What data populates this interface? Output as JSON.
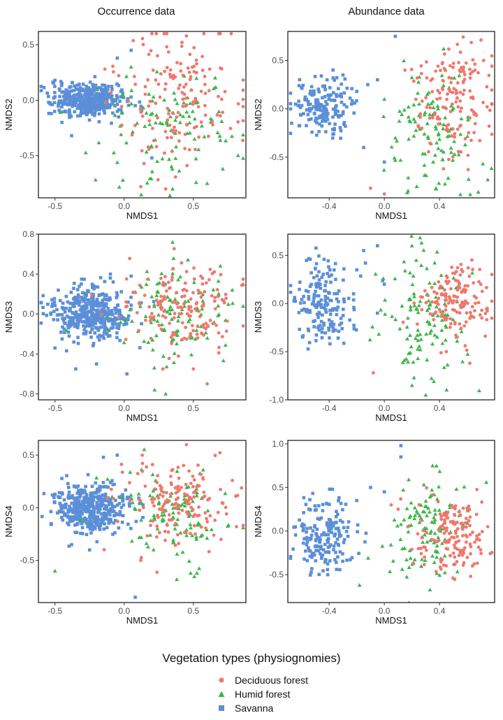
{
  "column_titles": [
    "Occurrence data",
    "Abundance data"
  ],
  "legend": {
    "title": "Vegetation types (physiognomies)",
    "entries": [
      {
        "label": "Deciduous forest",
        "shape": "circle",
        "color": "#F0776D"
      },
      {
        "label": "Humid forest",
        "shape": "triangle",
        "color": "#3FB54A"
      },
      {
        "label": "Savanna",
        "shape": "square",
        "color": "#5B8FD8"
      }
    ]
  },
  "chart_data": [
    {
      "type": "scatter",
      "panel": "occurrence-nmds2",
      "xlabel": "NMDS1",
      "ylabel": "NMDS2",
      "xlim": [
        -0.62,
        0.88
      ],
      "ylim": [
        -0.88,
        0.62
      ],
      "xticks": [
        -0.5,
        0.0,
        0.5
      ],
      "xtick_labels": [
        "-0.5",
        "0.0",
        "0.5"
      ],
      "yticks": [
        -0.5,
        0.0,
        0.5
      ],
      "ytick_labels": [
        "-0.5",
        "0.0",
        "0.5"
      ],
      "series": [
        {
          "name": "Savanna",
          "shape": "square",
          "color": "#5B8FD8",
          "n": 440,
          "center": [
            -0.25,
            0.0
          ],
          "spread": [
            0.13,
            0.07
          ],
          "outliers": [
            [
              -0.5,
              0.18
            ],
            [
              -0.45,
              -0.2
            ],
            [
              -0.38,
              -0.32
            ],
            [
              0.05,
              0.45
            ],
            [
              -0.05,
              0.38
            ],
            [
              0.2,
              -0.52
            ]
          ]
        },
        {
          "name": "Humid forest",
          "shape": "triangle",
          "color": "#3FB54A",
          "n": 110,
          "center": [
            0.3,
            -0.25
          ],
          "spread": [
            0.24,
            0.28
          ],
          "outliers": [
            [
              0.05,
              0.3
            ],
            [
              0.6,
              -0.75
            ],
            [
              0.35,
              -0.8
            ]
          ]
        },
        {
          "name": "Deciduous forest",
          "shape": "circle",
          "color": "#F0776D",
          "n": 160,
          "center": [
            0.38,
            0.05
          ],
          "spread": [
            0.2,
            0.32
          ],
          "outliers": [
            [
              0.3,
              -0.8
            ],
            [
              0.12,
              -0.78
            ],
            [
              0.45,
              0.58
            ]
          ]
        }
      ]
    },
    {
      "type": "scatter",
      "panel": "abundance-nmds2",
      "xlabel": "NMDS1",
      "ylabel": "NMDS2",
      "xlim": [
        -0.7,
        0.8
      ],
      "ylim": [
        -0.92,
        0.8
      ],
      "xticks": [
        -0.4,
        0.0,
        0.4
      ],
      "xtick_labels": [
        "-0.4",
        "0.0",
        "0.4"
      ],
      "yticks": [
        -0.5,
        0.0,
        0.5
      ],
      "ytick_labels": [
        "-0.5",
        "0.0",
        "0.5"
      ],
      "series": [
        {
          "name": "Savanna",
          "shape": "square",
          "color": "#5B8FD8",
          "n": 180,
          "center": [
            -0.44,
            0.02
          ],
          "spread": [
            0.1,
            0.14
          ],
          "outliers": [
            [
              0.08,
              0.75
            ],
            [
              -0.05,
              0.3
            ],
            [
              -0.12,
              0.25
            ],
            [
              -0.2,
              0.18
            ],
            [
              0.0,
              -0.55
            ],
            [
              -0.15,
              -0.4
            ],
            [
              -0.3,
              0.35
            ]
          ]
        },
        {
          "name": "Humid forest",
          "shape": "triangle",
          "color": "#3FB54A",
          "n": 110,
          "center": [
            0.35,
            -0.25
          ],
          "spread": [
            0.16,
            0.32
          ],
          "outliers": [
            [
              0.43,
              0.62
            ],
            [
              0.0,
              0.1
            ],
            [
              0.08,
              -0.3
            ]
          ]
        },
        {
          "name": "Deciduous forest",
          "shape": "circle",
          "color": "#F0776D",
          "n": 150,
          "center": [
            0.5,
            0.12
          ],
          "spread": [
            0.15,
            0.32
          ],
          "outliers": [
            [
              -0.1,
              -0.82
            ],
            [
              0.0,
              -0.88
            ],
            [
              0.15,
              0.4
            ],
            [
              0.72,
              0.5
            ]
          ]
        }
      ]
    },
    {
      "type": "scatter",
      "panel": "occurrence-nmds3",
      "xlabel": "NMDS1",
      "ylabel": "NMDS3",
      "xlim": [
        -0.62,
        0.88
      ],
      "ylim": [
        -0.86,
        0.8
      ],
      "xticks": [
        -0.5,
        0.0,
        0.5
      ],
      "xtick_labels": [
        "-0.5",
        "0.0",
        "0.5"
      ],
      "yticks": [
        -0.8,
        -0.4,
        0.0,
        0.4,
        0.8
      ],
      "ytick_labels": [
        "-0.8",
        "-0.4",
        "0.0",
        "0.4",
        "0.8"
      ],
      "series": [
        {
          "name": "Savanna",
          "shape": "square",
          "color": "#5B8FD8",
          "n": 420,
          "center": [
            -0.24,
            0.0
          ],
          "spread": [
            0.14,
            0.13
          ],
          "outliers": [
            [
              -0.35,
              -0.55
            ],
            [
              -0.2,
              -0.5
            ],
            [
              0.02,
              -0.6
            ],
            [
              -0.1,
              0.4
            ],
            [
              0.05,
              0.38
            ]
          ]
        },
        {
          "name": "Humid forest",
          "shape": "triangle",
          "color": "#3FB54A",
          "n": 120,
          "center": [
            0.35,
            0.0
          ],
          "spread": [
            0.22,
            0.22
          ],
          "outliers": [
            [
              0.35,
              0.72
            ],
            [
              0.22,
              -0.76
            ],
            [
              0.3,
              -0.8
            ]
          ]
        },
        {
          "name": "Deciduous forest",
          "shape": "circle",
          "color": "#F0776D",
          "n": 160,
          "center": [
            0.4,
            0.05
          ],
          "spread": [
            0.2,
            0.22
          ],
          "outliers": [
            [
              0.6,
              -0.7
            ],
            [
              0.5,
              -0.55
            ],
            [
              0.28,
              -0.55
            ]
          ]
        }
      ]
    },
    {
      "type": "scatter",
      "panel": "abundance-nmds3",
      "xlabel": "NMDS1",
      "ylabel": "NMDS3",
      "xlim": [
        -0.7,
        0.8
      ],
      "ylim": [
        -1.0,
        0.72
      ],
      "xticks": [
        -0.4,
        0.0,
        0.4
      ],
      "xtick_labels": [
        "-0.4",
        "0.0",
        "0.4"
      ],
      "yticks": [
        -1.0,
        -0.5,
        0.0,
        0.5
      ],
      "ytick_labels": [
        "-1.0",
        "-0.5",
        "0.0",
        "0.5"
      ],
      "series": [
        {
          "name": "Savanna",
          "shape": "square",
          "color": "#5B8FD8",
          "n": 180,
          "center": [
            -0.44,
            0.0
          ],
          "spread": [
            0.11,
            0.22
          ],
          "outliers": [
            [
              -0.05,
              0.6
            ],
            [
              -0.15,
              0.55
            ],
            [
              -0.2,
              0.35
            ],
            [
              0.0,
              0.2
            ],
            [
              -0.05,
              -0.1
            ]
          ]
        },
        {
          "name": "Humid forest",
          "shape": "triangle",
          "color": "#3FB54A",
          "n": 120,
          "center": [
            0.3,
            -0.15
          ],
          "spread": [
            0.16,
            0.35
          ],
          "outliers": [
            [
              0.2,
              0.6
            ],
            [
              0.27,
              0.63
            ],
            [
              0.2,
              -0.85
            ],
            [
              0.3,
              -0.95
            ]
          ]
        },
        {
          "name": "Deciduous forest",
          "shape": "circle",
          "color": "#F0776D",
          "n": 150,
          "center": [
            0.52,
            0.05
          ],
          "spread": [
            0.14,
            0.2
          ],
          "outliers": [
            [
              -0.08,
              -0.72
            ],
            [
              0.62,
              -0.62
            ],
            [
              0.45,
              -0.5
            ]
          ]
        }
      ]
    },
    {
      "type": "scatter",
      "panel": "occurrence-nmds4",
      "xlabel": "NMDS1",
      "ylabel": "NMDS4",
      "xlim": [
        -0.62,
        0.88
      ],
      "ylim": [
        -0.9,
        0.64
      ],
      "xticks": [
        -0.5,
        0.0,
        0.5
      ],
      "xtick_labels": [
        "-0.5",
        "0.0",
        "0.5"
      ],
      "yticks": [
        -0.5,
        0.0,
        0.5
      ],
      "ytick_labels": [
        "-0.5",
        "0.0",
        "0.5"
      ],
      "series": [
        {
          "name": "Savanna",
          "shape": "square",
          "color": "#5B8FD8",
          "n": 420,
          "center": [
            -0.24,
            0.0
          ],
          "spread": [
            0.14,
            0.11
          ],
          "outliers": [
            [
              -0.05,
              0.5
            ],
            [
              -0.15,
              0.48
            ],
            [
              0.08,
              -0.85
            ],
            [
              -0.38,
              -0.35
            ],
            [
              -0.25,
              -0.4
            ]
          ]
        },
        {
          "name": "Humid forest",
          "shape": "triangle",
          "color": "#3FB54A",
          "n": 120,
          "center": [
            0.35,
            -0.05
          ],
          "spread": [
            0.22,
            0.22
          ],
          "outliers": [
            [
              -0.5,
              -0.6
            ],
            [
              0.38,
              -0.68
            ],
            [
              0.48,
              -0.62
            ]
          ]
        },
        {
          "name": "Deciduous forest",
          "shape": "circle",
          "color": "#F0776D",
          "n": 160,
          "center": [
            0.38,
            0.08
          ],
          "spread": [
            0.2,
            0.2
          ],
          "outliers": [
            [
              0.45,
              0.6
            ],
            [
              0.7,
              -0.3
            ],
            [
              0.12,
              -0.5
            ]
          ]
        }
      ]
    },
    {
      "type": "scatter",
      "panel": "abundance-nmds4",
      "xlabel": "NMDS1",
      "ylabel": "NMDS4",
      "xlim": [
        -0.7,
        0.8
      ],
      "ylim": [
        -0.82,
        1.04
      ],
      "xticks": [
        -0.4,
        0.0,
        0.4
      ],
      "xtick_labels": [
        "-0.4",
        "0.0",
        "0.4"
      ],
      "yticks": [
        -0.5,
        0.0,
        0.5,
        1.0
      ],
      "ytick_labels": [
        "-0.5",
        "0.0",
        "0.5",
        "1.0"
      ],
      "series": [
        {
          "name": "Savanna",
          "shape": "square",
          "color": "#5B8FD8",
          "n": 180,
          "center": [
            -0.44,
            -0.05
          ],
          "spread": [
            0.11,
            0.22
          ],
          "outliers": [
            [
              0.12,
              0.98
            ],
            [
              0.12,
              0.85
            ],
            [
              -0.1,
              0.5
            ],
            [
              0.0,
              0.45
            ],
            [
              -0.2,
              0.35
            ]
          ]
        },
        {
          "name": "Humid forest",
          "shape": "triangle",
          "color": "#3FB54A",
          "n": 120,
          "center": [
            0.3,
            0.05
          ],
          "spread": [
            0.16,
            0.28
          ],
          "outliers": [
            [
              0.18,
              -0.82
            ],
            [
              0.35,
              0.75
            ],
            [
              -0.18,
              -0.62
            ]
          ]
        },
        {
          "name": "Deciduous forest",
          "shape": "circle",
          "color": "#F0776D",
          "n": 150,
          "center": [
            0.5,
            -0.08
          ],
          "spread": [
            0.13,
            0.25
          ],
          "outliers": [
            [
              0.75,
              0.05
            ],
            [
              0.1,
              0.25
            ],
            [
              0.05,
              0.3
            ]
          ]
        }
      ]
    }
  ]
}
